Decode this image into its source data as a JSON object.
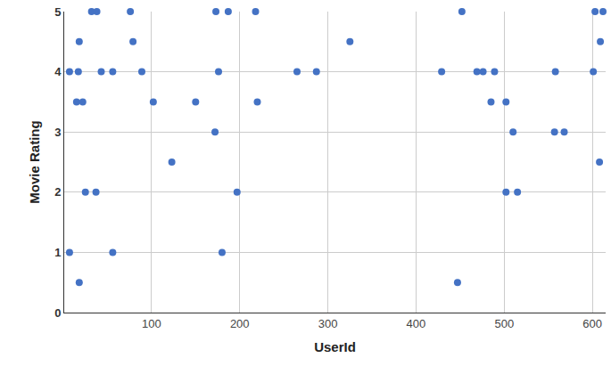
{
  "chart_data": {
    "type": "scatter",
    "x_label": "UserId",
    "y_label": "Movie Rating",
    "color": "#4472c4",
    "marker": "circle",
    "grid": true,
    "x": [
      7,
      7,
      15,
      18,
      17,
      18,
      22,
      25,
      32,
      38,
      37,
      43,
      56,
      56,
      76,
      79,
      89,
      102,
      123,
      150,
      172,
      173,
      176,
      180,
      187,
      197,
      218,
      220,
      265,
      287,
      325,
      429,
      447,
      452,
      469,
      476,
      485,
      489,
      502,
      502,
      510,
      515,
      558,
      557,
      568,
      601,
      603,
      608,
      609,
      612
    ],
    "values": [
      1,
      4,
      3.5,
      4.5,
      4,
      0.5,
      3.5,
      2,
      5,
      5,
      2,
      4,
      4,
      1,
      5,
      4.5,
      4,
      3.5,
      2.5,
      3.5,
      3,
      5,
      4,
      1,
      5,
      2,
      5,
      3.5,
      4,
      4,
      4.5,
      4,
      0.5,
      5,
      4,
      4,
      3.5,
      4,
      3.5,
      2,
      3,
      2,
      4,
      3,
      3,
      4,
      5,
      2.5,
      4.5,
      5
    ],
    "xlim": [
      1,
      615
    ],
    "xticks": [
      100,
      200,
      300,
      400,
      500,
      600
    ],
    "ylim": [
      0,
      5
    ],
    "yticks": [
      0,
      1,
      2,
      3,
      4,
      5
    ]
  }
}
